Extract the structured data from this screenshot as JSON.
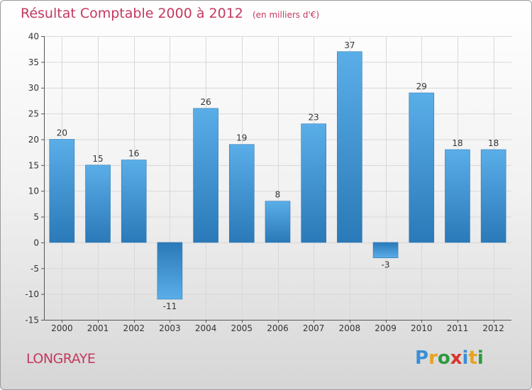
{
  "title": "Résultat Comptable 2000 à 2012",
  "subtitle": "(en milliers d'€)",
  "town": "LONGRAYE",
  "logo": {
    "text": "Proxiti",
    "letters": [
      {
        "ch": "P",
        "color": "#3a8fd6"
      },
      {
        "ch": "r",
        "color": "#e8a21f"
      },
      {
        "ch": "o",
        "color": "#2e9a3e"
      },
      {
        "ch": "x",
        "color": "#d9342b"
      },
      {
        "ch": "i",
        "color": "#3a8fd6"
      },
      {
        "ch": "t",
        "color": "#e8a21f"
      },
      {
        "ch": "i",
        "color": "#2e9a3e"
      }
    ]
  },
  "colors": {
    "title": "#c4385e",
    "bar_light": "#5aaee8",
    "bar_dark": "#2a79b8",
    "grid": "#d8d8d8",
    "axis": "#555555"
  },
  "chart_data": {
    "type": "bar",
    "title": "Résultat Comptable 2000 à 2012",
    "subtitle": "(en milliers d'€)",
    "xlabel": "",
    "ylabel": "",
    "categories": [
      "2000",
      "2001",
      "2002",
      "2003",
      "2004",
      "2005",
      "2006",
      "2007",
      "2008",
      "2009",
      "2010",
      "2011",
      "2012"
    ],
    "values": [
      20,
      15,
      16,
      -11,
      26,
      19,
      8,
      23,
      37,
      -3,
      29,
      18,
      18
    ],
    "ylim": [
      -15,
      40
    ],
    "yticks": [
      40,
      35,
      30,
      25,
      20,
      15,
      10,
      5,
      0,
      -5,
      -10,
      -15
    ],
    "grid": true
  }
}
